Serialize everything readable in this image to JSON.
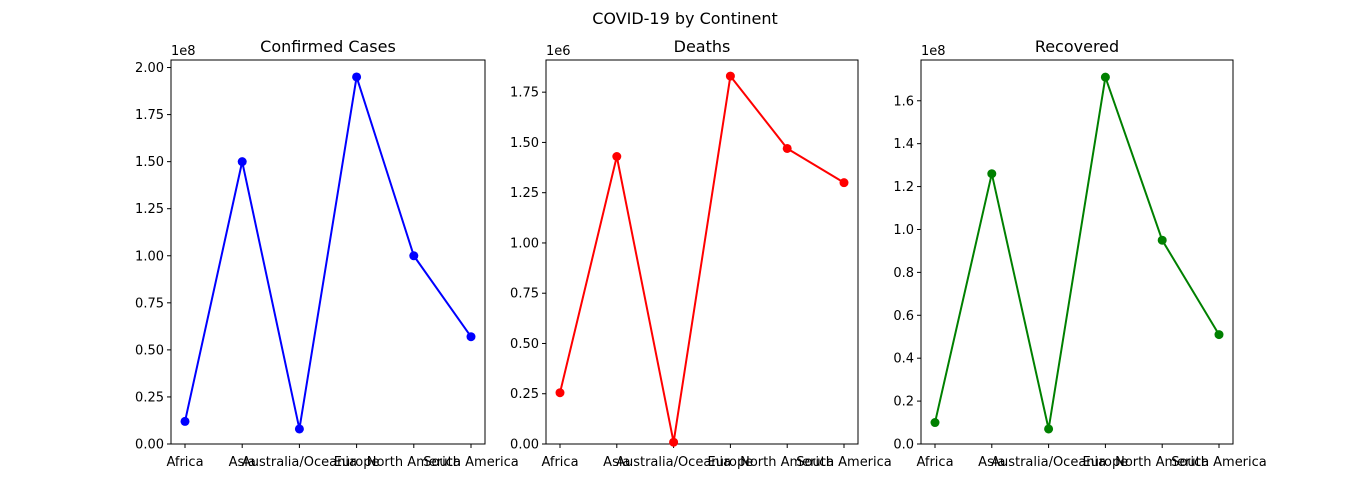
{
  "figure": {
    "suptitle": "COVID-19 by Continent"
  },
  "chart_data": [
    {
      "type": "line",
      "title": "Confirmed Cases",
      "xlabel": "",
      "ylabel": "",
      "categories": [
        "Africa",
        "Asia",
        "Australia/Oceania",
        "Europe",
        "North America",
        "South America"
      ],
      "series": [
        {
          "values": [
            12000000,
            150000000,
            8000000,
            195000000,
            100000000,
            57000000
          ],
          "color": "#0000ff",
          "marker": "circle"
        }
      ],
      "ylim": [
        0,
        204000000
      ],
      "yticks": [
        0,
        25000000,
        50000000,
        75000000,
        100000000,
        125000000,
        150000000,
        175000000,
        200000000
      ],
      "ytick_labels": [
        "0.00",
        "0.25",
        "0.50",
        "0.75",
        "1.00",
        "1.25",
        "1.50",
        "1.75",
        "2.00"
      ],
      "offset_label": "1e8",
      "grid": false
    },
    {
      "type": "line",
      "title": "Deaths",
      "xlabel": "",
      "ylabel": "",
      "categories": [
        "Africa",
        "Asia",
        "Australia/Oceania",
        "Europe",
        "North America",
        "South America"
      ],
      "series": [
        {
          "values": [
            255000,
            1430000,
            9000,
            1830000,
            1470000,
            1300000
          ],
          "color": "#ff0000",
          "marker": "circle"
        }
      ],
      "ylim": [
        0,
        1910000
      ],
      "yticks": [
        0,
        250000,
        500000,
        750000,
        1000000,
        1250000,
        1500000,
        1750000
      ],
      "ytick_labels": [
        "0.00",
        "0.25",
        "0.50",
        "0.75",
        "1.00",
        "1.25",
        "1.50",
        "1.75"
      ],
      "offset_label": "1e6",
      "grid": false
    },
    {
      "type": "line",
      "title": "Recovered",
      "xlabel": "",
      "ylabel": "",
      "categories": [
        "Africa",
        "Asia",
        "Australia/Oceania",
        "Europe",
        "North America",
        "South America"
      ],
      "series": [
        {
          "values": [
            10000000,
            126000000,
            7000000,
            171000000,
            95000000,
            51000000
          ],
          "color": "#008000",
          "marker": "circle"
        }
      ],
      "ylim": [
        0,
        179000000
      ],
      "yticks": [
        0,
        20000000,
        40000000,
        60000000,
        80000000,
        100000000,
        120000000,
        140000000,
        160000000
      ],
      "ytick_labels": [
        "0.0",
        "0.2",
        "0.4",
        "0.6",
        "0.8",
        "1.0",
        "1.2",
        "1.4",
        "1.6"
      ],
      "offset_label": "1e8",
      "grid": false
    }
  ]
}
